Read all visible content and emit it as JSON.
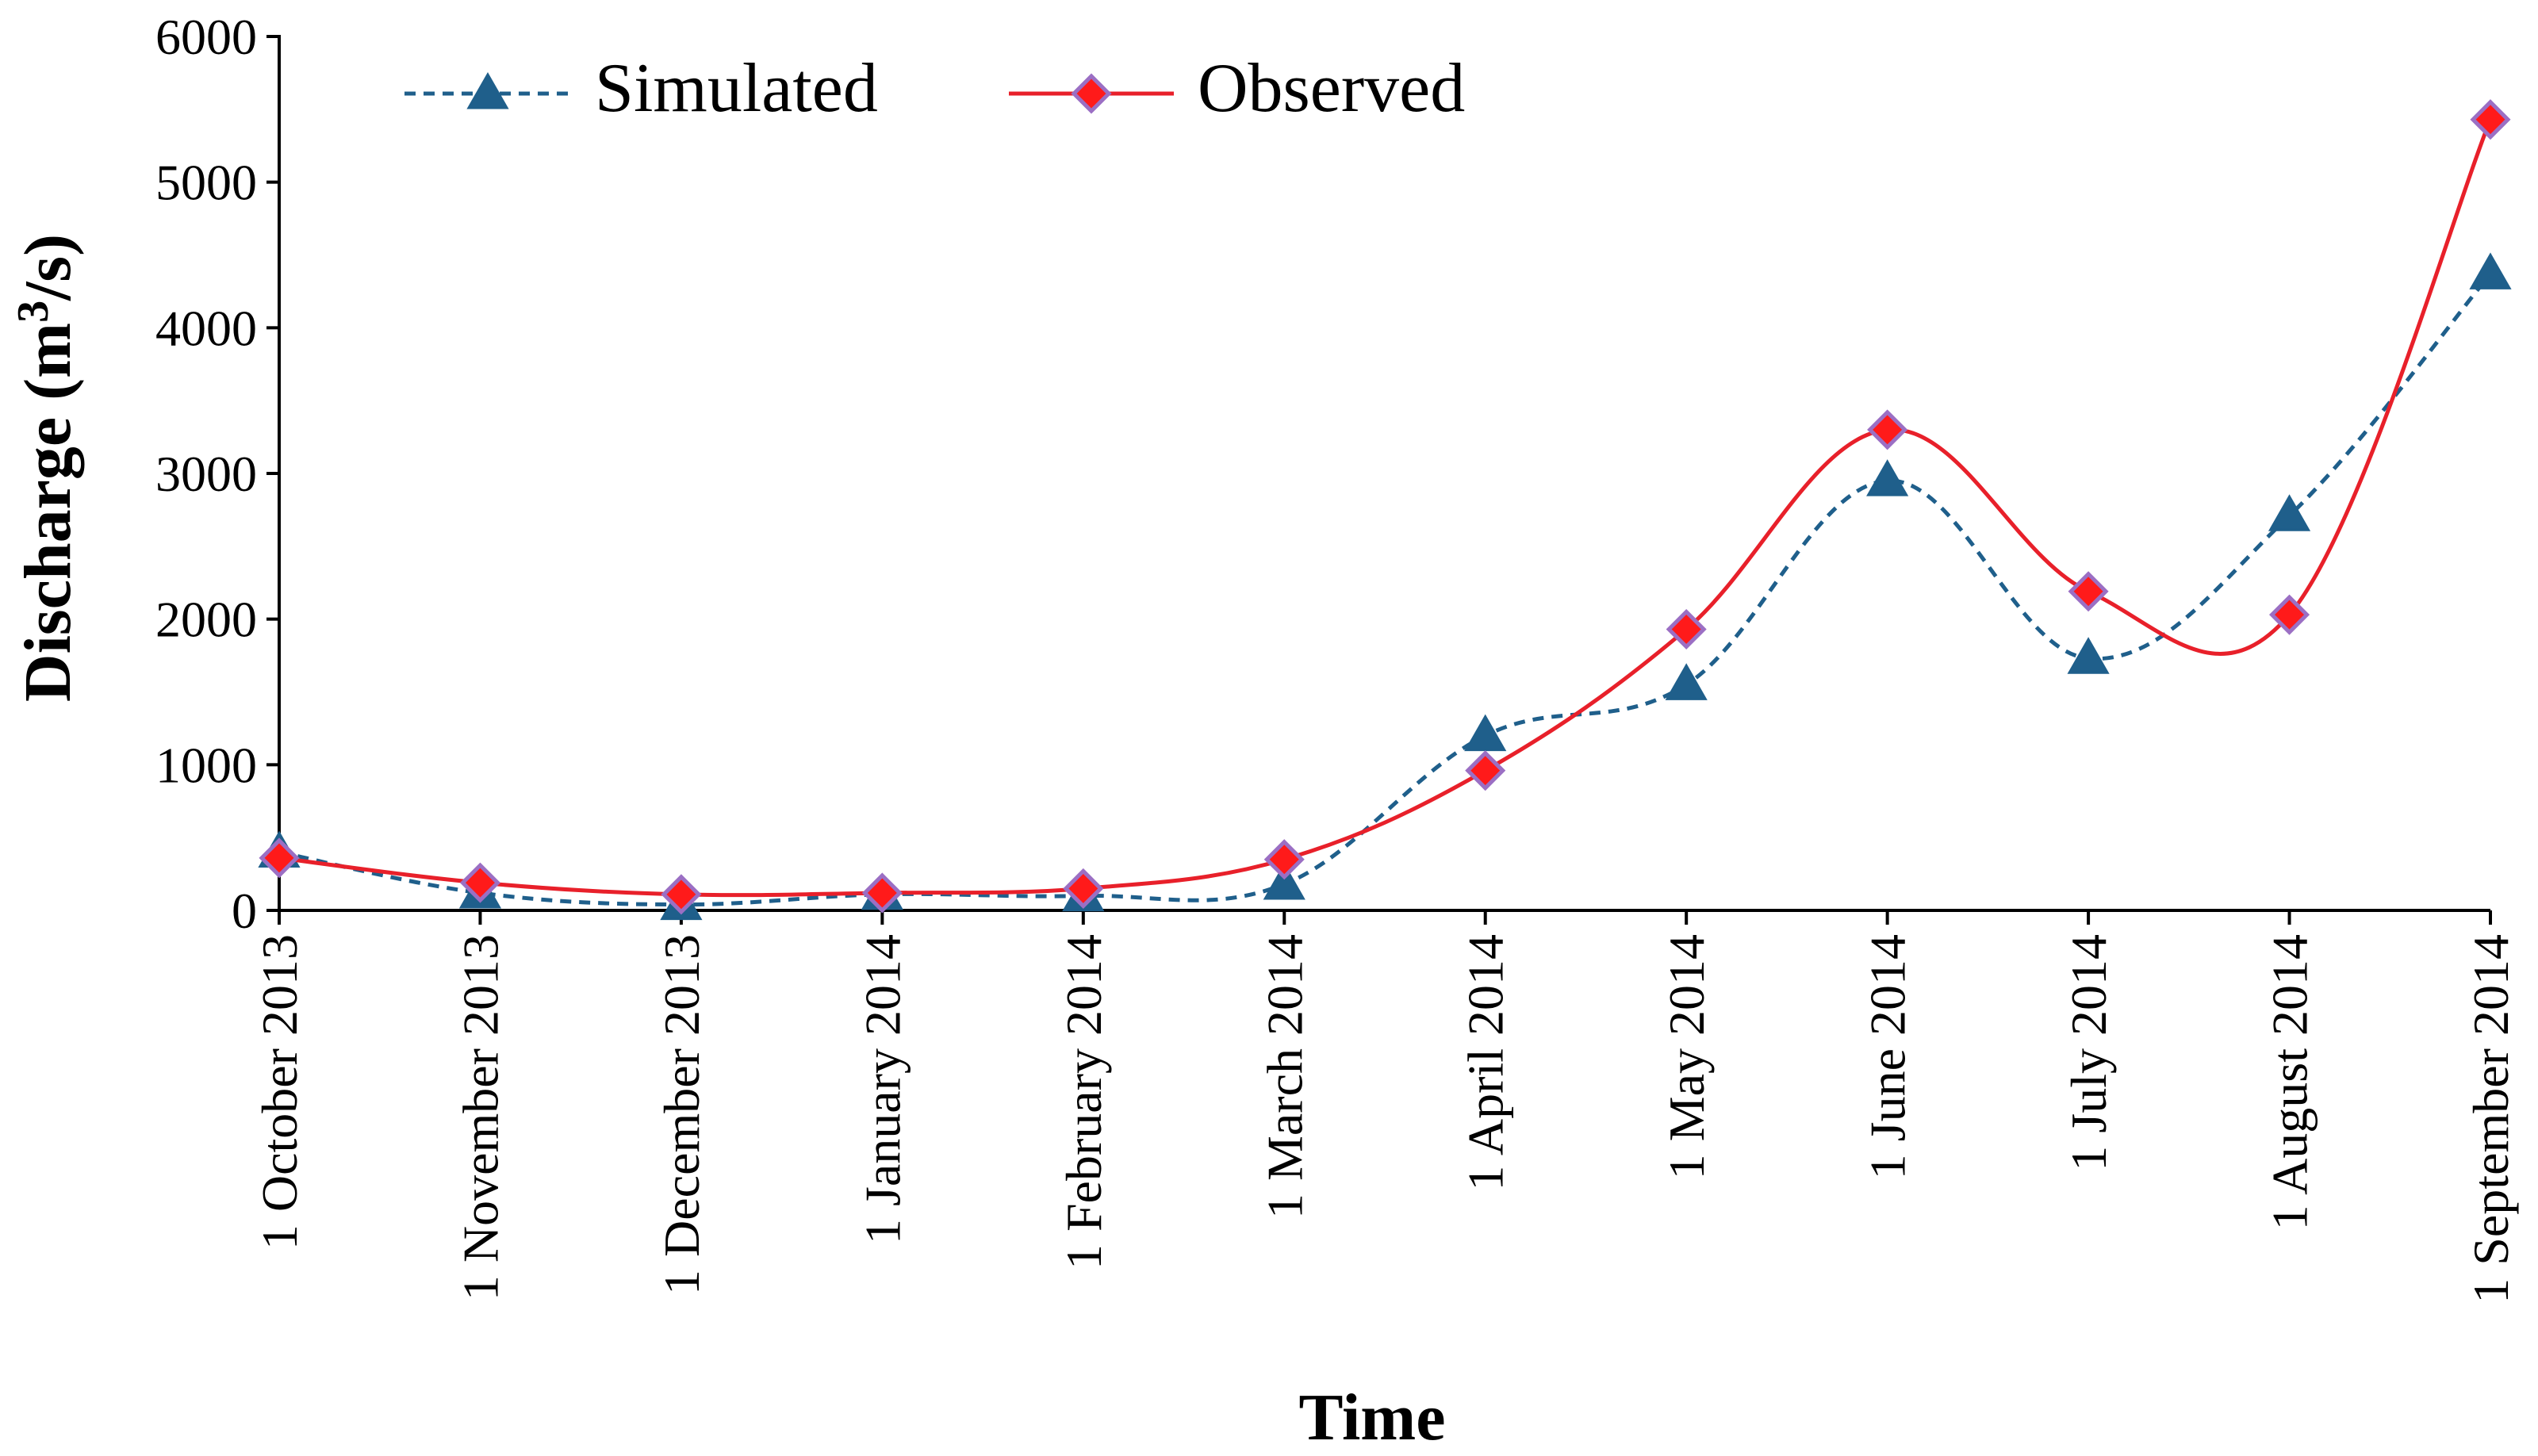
{
  "chart_data": {
    "type": "line",
    "title": "",
    "xlabel": "Time",
    "ylabel_prefix": "Discharge (m",
    "ylabel_sup": "3",
    "ylabel_suffix": "/s)",
    "ylim": [
      0,
      6000
    ],
    "yticks": [
      0,
      1000,
      2000,
      3000,
      4000,
      5000,
      6000
    ],
    "categories": [
      "1 October 2013",
      "1 November 2013",
      "1 December 2013",
      "1 January 2014",
      "1 February 2014",
      "1 March 2014",
      "1 April 2014",
      "1 May 2014",
      "1 June 2014",
      "1 July 2014",
      "1 August 2014",
      "1 September 2014"
    ],
    "grid": false,
    "legend_position": "top-left",
    "series": [
      {
        "name": "Simulated",
        "style": "dashed",
        "marker": "triangle",
        "color": "#1f5f8b",
        "marker_color": "#1f5f8b",
        "values": [
          400,
          120,
          40,
          110,
          100,
          180,
          1200,
          1550,
          2950,
          1730,
          2710,
          4370
        ]
      },
      {
        "name": "Observed",
        "style": "solid",
        "marker": "diamond",
        "color": "#e8202a",
        "marker_color": "#ff1a1a",
        "marker_edge": "#9b6fc4",
        "values": [
          360,
          190,
          110,
          120,
          150,
          350,
          960,
          1930,
          3300,
          2190,
          2030,
          5430
        ]
      }
    ]
  }
}
